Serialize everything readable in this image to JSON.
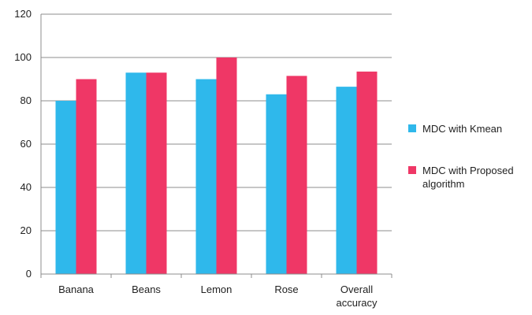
{
  "chart_data": {
    "type": "bar",
    "title": "",
    "xlabel": "",
    "ylabel": "",
    "categories": [
      "Banana",
      "Beans",
      "Lemon",
      "Rose",
      "Overall accuracy"
    ],
    "series": [
      {
        "name": "MDC with Kmean",
        "values": [
          80,
          93,
          90,
          83,
          86.5
        ],
        "color": "#2fb8eb"
      },
      {
        "name": "MDC with Proposed algorithm",
        "values": [
          90,
          93,
          100,
          91.5,
          93.5
        ],
        "color": "#ef3766"
      }
    ],
    "ylim": [
      0,
      120
    ],
    "yticks": [
      0,
      20,
      40,
      60,
      80,
      100,
      120
    ],
    "grid": true,
    "legend_position": "right"
  }
}
